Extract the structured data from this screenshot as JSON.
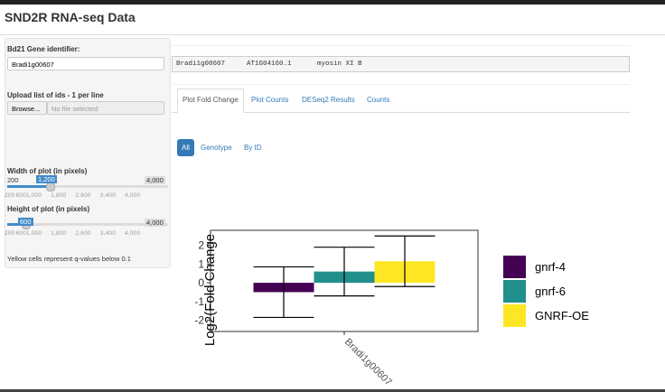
{
  "header": {
    "title": "SND2R RNA-seq Data"
  },
  "sidebar": {
    "gene_label": "Bd21 Gene identifier:",
    "gene_value": "Bradi1g00607",
    "upload_label": "Upload list of ids - 1 per line",
    "browse": "Browse...",
    "no_file": "No file selected",
    "width_label": "Width of plot (in pixels)",
    "width_min": "200",
    "width_value": "1,200",
    "width_max": "4,000",
    "width_ticks": [
      "200",
      "600",
      "1,000",
      "1,800",
      "2,600",
      "3,400",
      "4,000"
    ],
    "height_label": "Height of plot (in pixels)",
    "height_value": "600",
    "height_max": "4,000",
    "height_ticks": [
      "200",
      "600",
      "1,000",
      "1,800",
      "2,600",
      "3,400",
      "4,000"
    ],
    "note": "Yellow cells represent q-values below 0.1"
  },
  "info": {
    "gene": "Bradi1g00607",
    "ortholog": "AT1G04160.1",
    "description": "myosin XI B"
  },
  "tabs": [
    "Plot Fold Change",
    "Plot Counts",
    "DESeq2 Results",
    "Counts"
  ],
  "pills": [
    "All",
    "Genotype",
    "By ID"
  ],
  "chart_data": {
    "type": "bar",
    "ylabel": "Log2(Fold Change",
    "categories": [
      "Bradi1g00607"
    ],
    "series": [
      {
        "name": "gnrf-4",
        "color": "#440154",
        "values": [
          -0.5
        ],
        "errors": [
          1.35
        ]
      },
      {
        "name": "gnrf-6",
        "color": "#21908c",
        "values": [
          0.6
        ],
        "errors": [
          1.3
        ]
      },
      {
        "name": "GNRF-OE",
        "color": "#fde725",
        "values": [
          1.15
        ],
        "errors": [
          1.35
        ]
      }
    ],
    "ylim": [
      -2.6,
      2.8
    ],
    "yticks": [
      -2,
      -1,
      0,
      1,
      2
    ],
    "grid": false,
    "legend": "right"
  }
}
